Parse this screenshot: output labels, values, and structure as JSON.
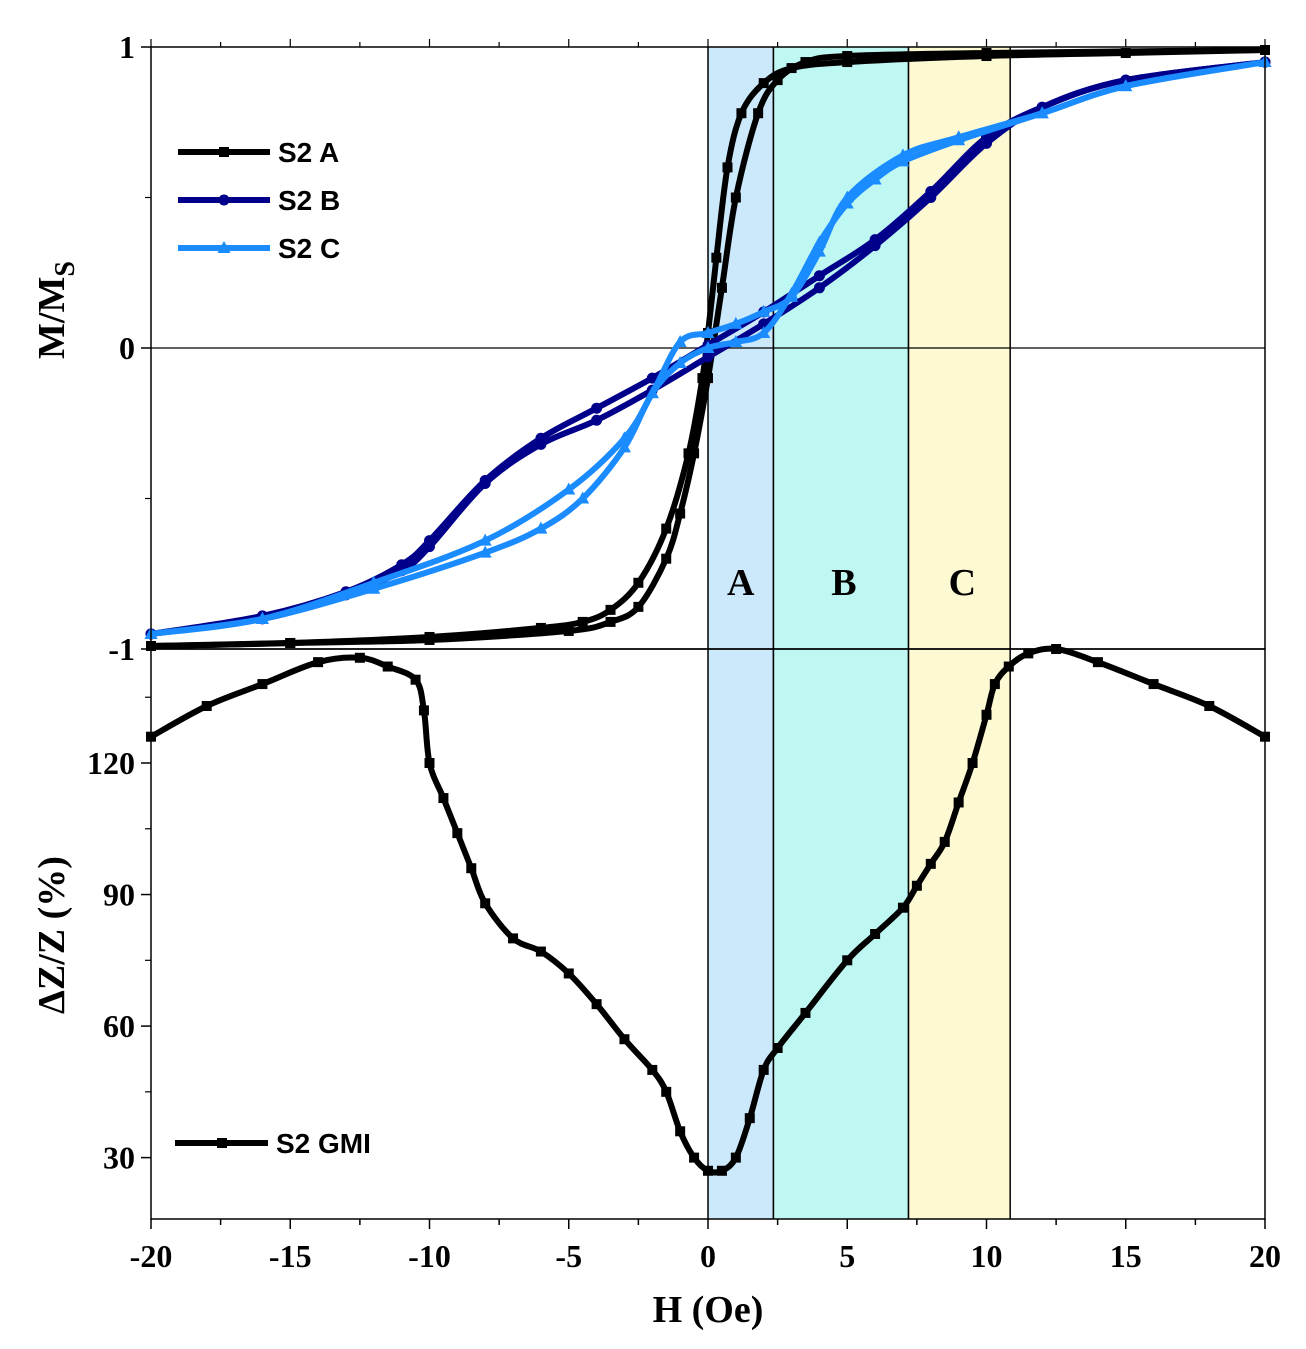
{
  "chart_data": [
    {
      "type": "line",
      "panel": "top",
      "title": "",
      "xlabel": "H (Oe)",
      "ylabel_main": "M/M",
      "ylabel_sub": "S",
      "xlim": [
        -20,
        20
      ],
      "ylim": [
        -1,
        1
      ],
      "y_ticks": [
        -1,
        0,
        1
      ],
      "y_tick_labels": [
        "-1",
        "0",
        "1"
      ],
      "legend_position": "top-left",
      "regions": [
        {
          "label": "A",
          "x0": 0,
          "x1": 2.35,
          "color": "#cce9fb"
        },
        {
          "label": "B",
          "x0": 2.35,
          "x1": 7.2,
          "color": "#bff8f3"
        },
        {
          "label": "C",
          "x0": 7.2,
          "x1": 10.85,
          "color": "#fdf9d3"
        }
      ],
      "series": [
        {
          "name": "S2 A",
          "color": "#000000",
          "marker": "square",
          "x": [
            -20,
            -15,
            -10,
            -6,
            -4.5,
            -3.5,
            -2.5,
            -1.5,
            -0.7,
            -0.2,
            0,
            0.3,
            0.7,
            1.2,
            2,
            3,
            5,
            10,
            15,
            20
          ],
          "y": [
            -0.99,
            -0.98,
            -0.96,
            -0.93,
            -0.91,
            -0.87,
            -0.78,
            -0.6,
            -0.35,
            -0.1,
            0.05,
            0.3,
            0.6,
            0.78,
            0.88,
            0.93,
            0.95,
            0.97,
            0.98,
            0.99
          ],
          "x_return": [
            20,
            10,
            5,
            3.5,
            2.5,
            1.8,
            1,
            0.5,
            0,
            -0.5,
            -1,
            -1.5,
            -2.5,
            -3.5,
            -5,
            -10,
            -15,
            -20
          ],
          "y_return": [
            0.99,
            0.98,
            0.97,
            0.95,
            0.89,
            0.78,
            0.5,
            0.2,
            -0.1,
            -0.35,
            -0.55,
            -0.7,
            -0.86,
            -0.91,
            -0.94,
            -0.97,
            -0.98,
            -0.99
          ]
        },
        {
          "name": "S2 B",
          "color": "#00008b",
          "marker": "circle",
          "x": [
            -20,
            -16,
            -13,
            -11,
            -10,
            -8,
            -6,
            -4,
            -2,
            0,
            2,
            4,
            6,
            8,
            10,
            12,
            15,
            20
          ],
          "y": [
            -0.95,
            -0.9,
            -0.82,
            -0.74,
            -0.66,
            -0.45,
            -0.32,
            -0.24,
            -0.14,
            -0.03,
            0.08,
            0.2,
            0.34,
            0.5,
            0.68,
            0.8,
            0.89,
            0.95
          ],
          "x_return": [
            20,
            15,
            12,
            10,
            8,
            6,
            4,
            2,
            0,
            -2,
            -4,
            -6,
            -8,
            -10,
            -11,
            -13,
            -16,
            -20
          ],
          "y_return": [
            0.95,
            0.89,
            0.8,
            0.7,
            0.52,
            0.36,
            0.24,
            0.12,
            0.01,
            -0.1,
            -0.2,
            -0.3,
            -0.44,
            -0.64,
            -0.72,
            -0.81,
            -0.89,
            -0.95
          ]
        },
        {
          "name": "S2 C",
          "color": "#1a8cff",
          "marker": "triangle",
          "x": [
            -20,
            -16,
            -12,
            -8,
            -6,
            -4.5,
            -3,
            -2,
            -1,
            0,
            1,
            2,
            3,
            4,
            5,
            6,
            7,
            9,
            12,
            15,
            20
          ],
          "y": [
            -0.95,
            -0.9,
            -0.8,
            -0.68,
            -0.6,
            -0.5,
            -0.33,
            -0.15,
            -0.05,
            0,
            0.02,
            0.05,
            0.18,
            0.35,
            0.48,
            0.56,
            0.62,
            0.69,
            0.78,
            0.87,
            0.95
          ],
          "x_return": [
            20,
            15,
            12,
            9,
            7,
            5,
            4,
            3,
            2,
            1,
            0,
            -1,
            -2,
            -3,
            -5,
            -8,
            -12,
            -16,
            -20
          ],
          "y_return": [
            0.95,
            0.87,
            0.78,
            0.7,
            0.64,
            0.5,
            0.32,
            0.17,
            0.12,
            0.08,
            0.05,
            0.02,
            -0.15,
            -0.3,
            -0.47,
            -0.64,
            -0.78,
            -0.9,
            -0.95
          ]
        }
      ]
    },
    {
      "type": "line",
      "panel": "bottom",
      "title": "",
      "xlabel": "H (Oe)",
      "ylabel": "ΔZ/Z (%)",
      "xlim": [
        -20,
        20
      ],
      "ylim": [
        16,
        146
      ],
      "x_ticks": [
        -20,
        -15,
        -10,
        -5,
        0,
        5,
        10,
        15,
        20
      ],
      "x_tick_labels": [
        "-20",
        "-15",
        "-10",
        "-5",
        "0",
        "5",
        "10",
        "15",
        "20"
      ],
      "y_ticks": [
        30,
        60,
        90,
        120
      ],
      "y_tick_labels": [
        "30",
        "60",
        "90",
        "120"
      ],
      "legend_position": "bottom-left",
      "series": [
        {
          "name": "S2 GMI",
          "color": "#000000",
          "marker": "square",
          "x": [
            -20,
            -18,
            -16,
            -14,
            -12.5,
            -11.5,
            -10.5,
            -10.2,
            -10,
            -9.5,
            -9,
            -8.5,
            -8,
            -7,
            -6,
            -5,
            -4,
            -3,
            -2,
            -1.5,
            -1,
            -0.5,
            0,
            0.5,
            1,
            1.5,
            2,
            2.5,
            3.5,
            5,
            6,
            7,
            7.5,
            8,
            8.5,
            9,
            9.5,
            10,
            10.3,
            10.8,
            11.5,
            12.5,
            14,
            16,
            18,
            20
          ],
          "y": [
            126,
            133,
            138,
            143,
            144,
            142,
            139,
            132,
            120,
            112,
            104,
            96,
            88,
            80,
            77,
            72,
            65,
            57,
            50,
            45,
            36,
            30,
            27,
            27,
            30,
            39,
            50,
            55,
            63,
            75,
            81,
            87,
            92,
            97,
            102,
            111,
            120,
            131,
            138,
            142,
            145,
            146,
            143,
            138,
            133,
            126
          ]
        }
      ]
    }
  ]
}
